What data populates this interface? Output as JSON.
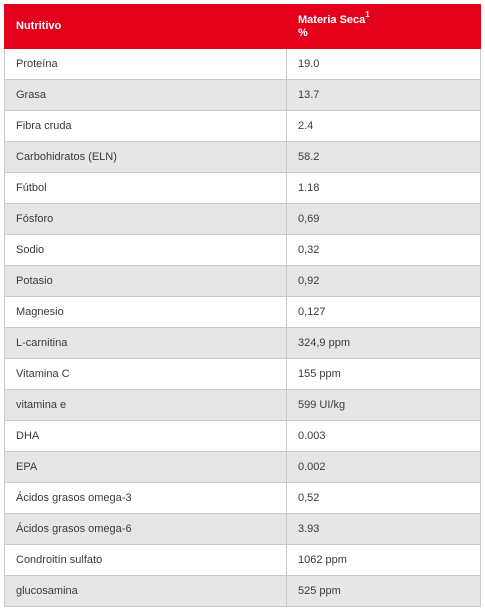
{
  "header": {
    "col1": "Nutritivo",
    "col2_line1": "Materia Seca",
    "col2_sup": "1",
    "col2_line2": "%"
  },
  "rows": [
    {
      "name": "Proteína",
      "value": "19.0"
    },
    {
      "name": "Grasa",
      "value": "13.7"
    },
    {
      "name": "Fibra cruda",
      "value": "2.4"
    },
    {
      "name": "Carbohidratos (ELN)",
      "value": "58.2"
    },
    {
      "name": "Fútbol",
      "value": "1.18"
    },
    {
      "name": "Fósforo",
      "value": "0,69"
    },
    {
      "name": "Sodio",
      "value": "0,32"
    },
    {
      "name": "Potasio",
      "value": "0,92"
    },
    {
      "name": "Magnesio",
      "value": "0,127"
    },
    {
      "name": "L-carnitina",
      "value": "324,9 ppm"
    },
    {
      "name": "Vitamina C",
      "value": "155 ppm"
    },
    {
      "name": "vitamina e",
      "value": "599 UI/kg"
    },
    {
      "name": "DHA",
      "value": "0.003"
    },
    {
      "name": "EPA",
      "value": "0.002"
    },
    {
      "name": "Ácidos grasos omega-3",
      "value": "0,52"
    },
    {
      "name": "Ácidos grasos omega-6",
      "value": "3.93"
    },
    {
      "name": "Condroitín sulfato",
      "value": "1062 ppm"
    },
    {
      "name": "glucosamina",
      "value": "525 ppm"
    }
  ],
  "colors": {
    "header_bg": "#e2001a",
    "header_text": "#ffffff",
    "row_alt_bg": "#e6e6e6",
    "border": "#c9c9c9"
  }
}
